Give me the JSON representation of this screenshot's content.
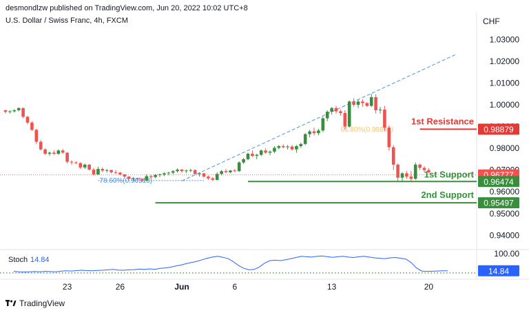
{
  "header": {
    "published_by": "desmondlzw published on TradingView.com, Jun 20, 2022 10:02 UTC+8",
    "symbol": "U.S. Dollar / Swiss Franc, 4h, FXCM",
    "currency": "CHF"
  },
  "footer": {
    "brand": "TradingView"
  },
  "colors": {
    "up": "#388e3c",
    "down": "#ef5350",
    "resistance": "#e53935",
    "support": "#388e3c",
    "trend": "#4a90e2",
    "fib": "#f0b34a",
    "stoch": "#2962ff",
    "current": "#ef5350"
  },
  "chart_data": {
    "type": "candlestick",
    "title": "U.S. Dollar / Swiss Franc, 4h, FXCM",
    "y_unit": "CHF",
    "ylim": [
      0.9325,
      1.0355
    ],
    "y_ticks": [
      "1.03000",
      "1.02000",
      "1.01000",
      "1.00000",
      "0.99000",
      "0.98000",
      "0.97000",
      "0.96000",
      "0.95000",
      "0.94000"
    ],
    "x_ticks": [
      {
        "label": "23",
        "index": 14
      },
      {
        "label": "26",
        "index": 26
      },
      {
        "label": "Jun",
        "index": 40,
        "bold": true
      },
      {
        "label": "6",
        "index": 52
      },
      {
        "label": "13",
        "index": 74
      },
      {
        "label": "20",
        "index": 96
      }
    ],
    "candles": [
      [
        0.9975,
        0.9978,
        0.996,
        0.9968
      ],
      [
        0.9968,
        0.9975,
        0.996,
        0.997
      ],
      [
        0.997,
        0.998,
        0.9965,
        0.9975
      ],
      [
        0.9975,
        0.9988,
        0.997,
        0.9985
      ],
      [
        0.9985,
        0.9987,
        0.9938,
        0.9945
      ],
      [
        0.9945,
        0.995,
        0.991,
        0.9918
      ],
      [
        0.9918,
        0.9925,
        0.988,
        0.9885
      ],
      [
        0.9885,
        0.989,
        0.982,
        0.983
      ],
      [
        0.983,
        0.9838,
        0.979,
        0.9795
      ],
      [
        0.9795,
        0.98,
        0.977,
        0.9775
      ],
      [
        0.9775,
        0.9785,
        0.9765,
        0.978
      ],
      [
        0.978,
        0.979,
        0.977,
        0.9775
      ],
      [
        0.9775,
        0.9795,
        0.977,
        0.979
      ],
      [
        0.979,
        0.9798,
        0.9775,
        0.978
      ],
      [
        0.978,
        0.9782,
        0.973,
        0.9738
      ],
      [
        0.9738,
        0.9745,
        0.9725,
        0.9735
      ],
      [
        0.9735,
        0.974,
        0.9728,
        0.9732
      ],
      [
        0.9732,
        0.9736,
        0.9705,
        0.9712
      ],
      [
        0.9712,
        0.973,
        0.9705,
        0.9725
      ],
      [
        0.9725,
        0.9728,
        0.9698,
        0.9702
      ],
      [
        0.9702,
        0.971,
        0.9675,
        0.968
      ],
      [
        0.968,
        0.9715,
        0.9678,
        0.9705
      ],
      [
        0.9705,
        0.9712,
        0.969,
        0.9698
      ],
      [
        0.9698,
        0.9705,
        0.9688,
        0.97
      ],
      [
        0.97,
        0.9702,
        0.9684,
        0.969
      ],
      [
        0.969,
        0.97,
        0.9682,
        0.9688
      ],
      [
        0.9688,
        0.9692,
        0.9675,
        0.968
      ],
      [
        0.968,
        0.9682,
        0.9665,
        0.967
      ],
      [
        0.967,
        0.9672,
        0.9655,
        0.966
      ],
      [
        0.966,
        0.9668,
        0.965,
        0.9662
      ],
      [
        0.9662,
        0.9665,
        0.965,
        0.9658
      ],
      [
        0.9658,
        0.9662,
        0.9645,
        0.9652
      ],
      [
        0.9652,
        0.968,
        0.965,
        0.9672
      ],
      [
        0.9672,
        0.9678,
        0.966,
        0.9668
      ],
      [
        0.9668,
        0.9682,
        0.9662,
        0.9678
      ],
      [
        0.9678,
        0.9684,
        0.9668,
        0.968
      ],
      [
        0.968,
        0.969,
        0.9672,
        0.9685
      ],
      [
        0.9685,
        0.9692,
        0.9676,
        0.9688
      ],
      [
        0.9688,
        0.97,
        0.968,
        0.9695
      ],
      [
        0.9695,
        0.9708,
        0.9688,
        0.9702
      ],
      [
        0.9702,
        0.9705,
        0.9688,
        0.9695
      ],
      [
        0.9695,
        0.9702,
        0.9686,
        0.9698
      ],
      [
        0.9698,
        0.9706,
        0.969,
        0.97
      ],
      [
        0.97,
        0.9703,
        0.9678,
        0.9682
      ],
      [
        0.9682,
        0.969,
        0.967,
        0.9685
      ],
      [
        0.9685,
        0.9688,
        0.9665,
        0.967
      ],
      [
        0.967,
        0.9675,
        0.9655,
        0.9662
      ],
      [
        0.9662,
        0.9668,
        0.965,
        0.9655
      ],
      [
        0.9655,
        0.969,
        0.9652,
        0.9682
      ],
      [
        0.9682,
        0.97,
        0.9675,
        0.9695
      ],
      [
        0.9695,
        0.9705,
        0.9685,
        0.969
      ],
      [
        0.969,
        0.97,
        0.9685,
        0.9698
      ],
      [
        0.9698,
        0.9705,
        0.969,
        0.9695
      ],
      [
        0.9695,
        0.974,
        0.9692,
        0.9735
      ],
      [
        0.9735,
        0.9755,
        0.9728,
        0.975
      ],
      [
        0.975,
        0.978,
        0.9745,
        0.9775
      ],
      [
        0.9775,
        0.979,
        0.976,
        0.9765
      ],
      [
        0.9765,
        0.9775,
        0.975,
        0.977
      ],
      [
        0.977,
        0.9795,
        0.9765,
        0.979
      ],
      [
        0.979,
        0.98,
        0.9775,
        0.978
      ],
      [
        0.978,
        0.979,
        0.9768,
        0.9785
      ],
      [
        0.9785,
        0.981,
        0.9778,
        0.9802
      ],
      [
        0.9802,
        0.9815,
        0.9795,
        0.981
      ],
      [
        0.981,
        0.9818,
        0.98,
        0.9805
      ],
      [
        0.9805,
        0.9815,
        0.9795,
        0.9808
      ],
      [
        0.9808,
        0.9815,
        0.979,
        0.9795
      ],
      [
        0.9795,
        0.9815,
        0.978,
        0.981
      ],
      [
        0.981,
        0.9825,
        0.9802,
        0.982
      ],
      [
        0.982,
        0.987,
        0.9815,
        0.9865
      ],
      [
        0.9865,
        0.9885,
        0.985,
        0.9878
      ],
      [
        0.9878,
        0.9895,
        0.986,
        0.987
      ],
      [
        0.987,
        0.989,
        0.986,
        0.9882
      ],
      [
        0.9882,
        0.9945,
        0.9875,
        0.9938
      ],
      [
        0.9938,
        0.9975,
        0.9925,
        0.9968
      ],
      [
        0.9968,
        0.999,
        0.9955,
        0.9985
      ],
      [
        0.9985,
        0.9995,
        0.996,
        0.997
      ],
      [
        0.997,
        0.9978,
        0.995,
        0.9962
      ],
      [
        0.9962,
        0.9975,
        0.9885,
        0.99
      ],
      [
        0.99,
        1.002,
        0.9895,
        1.0015
      ],
      [
        1.0015,
        1.003,
        0.999,
        1.0
      ],
      [
        1.0,
        1.0025,
        0.9985,
        1.0015
      ],
      [
        1.0015,
        1.0025,
        0.9992,
        1.0008
      ],
      [
        1.0008,
        1.0012,
        0.999,
        0.9995
      ],
      [
        0.9995,
        1.005,
        0.999,
        1.0035
      ],
      [
        1.0035,
        1.0048,
        0.996,
        0.9975
      ],
      [
        0.9975,
        0.999,
        0.996,
        0.9978
      ],
      [
        0.9978,
        0.9995,
        0.988,
        0.9895
      ],
      [
        0.9895,
        0.9905,
        0.979,
        0.9805
      ],
      [
        0.9805,
        0.9815,
        0.97,
        0.9725
      ],
      [
        0.9725,
        0.973,
        0.965,
        0.9665
      ],
      [
        0.9665,
        0.969,
        0.9645,
        0.9685
      ],
      [
        0.9685,
        0.9695,
        0.966,
        0.967
      ],
      [
        0.967,
        0.9695,
        0.965,
        0.966
      ],
      [
        0.966,
        0.9735,
        0.9655,
        0.9725
      ],
      [
        0.9725,
        0.973,
        0.97,
        0.971
      ],
      [
        0.971,
        0.9718,
        0.969,
        0.97
      ],
      [
        0.97,
        0.9708,
        0.9685,
        0.969
      ]
    ],
    "levels": [
      {
        "name": "1st Resistance",
        "value": 0.98879,
        "role": "resistance"
      },
      {
        "name": "1st Support",
        "value": 0.96474,
        "role": "support"
      },
      {
        "name": "2nd Support",
        "value": 0.95497,
        "role": "support"
      }
    ],
    "current_price": 0.96777,
    "price_labels": [
      "0.98879",
      "0.96777",
      "0.96474",
      "0.95497"
    ],
    "annotations": [
      {
        "text": "78.60%(0.96518)",
        "value": 0.96518
      },
      {
        "text": "61.80%(0.98861)",
        "value": 0.98861
      }
    ],
    "trendline": {
      "from": [
        40,
        0.965
      ],
      "to": [
        102,
        1.023
      ]
    },
    "stochastic": {
      "name": "Stoch",
      "value": "14.84",
      "ylim": [
        0,
        100
      ],
      "y_tick": "100.00",
      "values": [
        12,
        10,
        9,
        10,
        11,
        10,
        12,
        11,
        10,
        13,
        15,
        14,
        16,
        18,
        16,
        15,
        17,
        18,
        20,
        22,
        19,
        18,
        20,
        21,
        24,
        22,
        25,
        23,
        28,
        30,
        34,
        40,
        45,
        52,
        58,
        64,
        72,
        80,
        86,
        90,
        85,
        78,
        62,
        42,
        28,
        20,
        22,
        35,
        55,
        68,
        70,
        68,
        72,
        78,
        84,
        90,
        88,
        86,
        90,
        92,
        88,
        85,
        88,
        90,
        86,
        84,
        88,
        90,
        86,
        82,
        80,
        78,
        82,
        84,
        80,
        76,
        58,
        30,
        14,
        12,
        13,
        14,
        15,
        15
      ]
    }
  }
}
